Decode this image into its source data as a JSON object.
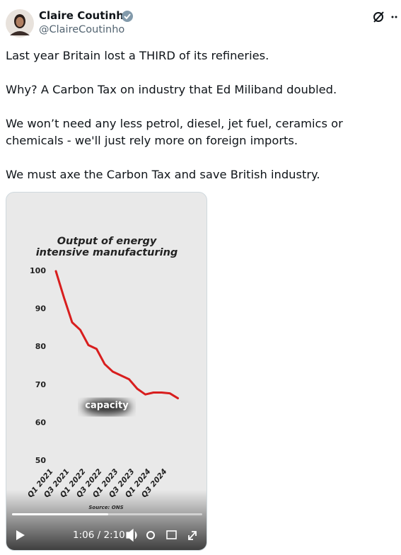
{
  "author": {
    "name": "Claire Coutinho",
    "handle": "@ClaireCoutinho"
  },
  "tweet": {
    "paragraphs": [
      "Last year Britain lost a THIRD of its refineries.",
      "Why? A Carbon Tax on industry that Ed Miliband doubled.",
      "We won’t need any less petrol, diesel, jet fuel, ceramics or chemicals - we'll just rely more on foreign imports.",
      "We must axe the Carbon Tax and save British industry."
    ]
  },
  "video": {
    "time": "1:06 / 2:10"
  },
  "chart_data": {
    "type": "line",
    "title": "Output of energy intensive manufacturing",
    "categories": [
      "Q1 2021",
      null,
      "Q3 2021",
      null,
      "Q1 2022",
      null,
      "Q3 2022",
      null,
      "Q1 2023",
      null,
      "Q3 2023",
      null,
      "Q1 2024",
      null,
      "Q3 2024",
      null
    ],
    "series": [
      {
        "name": "Output",
        "color": "#d81e1e",
        "values": [
          100,
          93,
          86.5,
          84.5,
          80.5,
          79.5,
          75.5,
          73.5,
          72.5,
          71.5,
          69,
          67.5,
          68,
          68,
          67.8,
          66.5
        ]
      }
    ],
    "ylim": [
      50,
      100
    ],
    "yticks": [
      50,
      60,
      70,
      80,
      90,
      100
    ],
    "grid": false,
    "annotation": "capacity",
    "source": "Source: ONS"
  }
}
